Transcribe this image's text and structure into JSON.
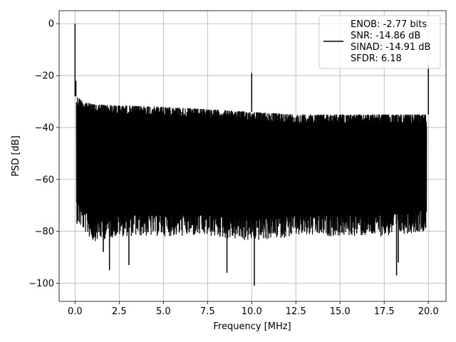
{
  "chart_data": {
    "type": "line",
    "title": "",
    "xlabel": "Frequency [MHz]",
    "ylabel": "PSD [dB]",
    "xlim": [
      -0.9,
      21.0
    ],
    "ylim": [
      -107,
      5
    ],
    "xticks": [
      0.0,
      2.5,
      5.0,
      7.5,
      10.0,
      12.5,
      15.0,
      17.5,
      20.0
    ],
    "xtick_labels": [
      "0.0",
      "2.5",
      "5.0",
      "7.5",
      "10.0",
      "12.5",
      "15.0",
      "17.5",
      "20.0"
    ],
    "yticks": [
      0,
      -20,
      -40,
      -60,
      -80,
      -100
    ],
    "ytick_labels": [
      "0",
      "−20",
      "−40",
      "−60",
      "−80",
      "−100"
    ],
    "grid": true,
    "legend_position": "top-right",
    "line_color": "#000000",
    "noise_envelope": {
      "x": [
        0.08,
        0.5,
        1.0,
        2.5,
        5.0,
        7.5,
        10.0,
        12.5,
        15.0,
        17.5,
        19.9
      ],
      "upper": [
        -28,
        -30,
        -31,
        -31.5,
        -32,
        -33,
        -34,
        -35,
        -35,
        -35,
        -35
      ],
      "lower": [
        -75,
        -78,
        -82,
        -80,
        -80,
        -80,
        -82,
        -80,
        -80,
        -80,
        -78
      ]
    },
    "notable_points": [
      {
        "x": 0.0,
        "y": 0.0
      },
      {
        "x": 0.05,
        "y": -22
      },
      {
        "x": 10.0,
        "y": -19
      },
      {
        "x": 20.0,
        "y": -16
      },
      {
        "x": 10.15,
        "y": -101
      },
      {
        "x": 18.2,
        "y": -97
      },
      {
        "x": 1.95,
        "y": -95
      },
      {
        "x": 8.6,
        "y": -96
      },
      {
        "x": 3.05,
        "y": -93
      },
      {
        "x": 1.6,
        "y": -88
      },
      {
        "x": 18.3,
        "y": -92
      }
    ],
    "series": [
      {
        "name": "",
        "legend_lines": [
          "ENOB: -2.77 bits",
          "SNR: -14.86 dB",
          "SINAD: -14.91 dB",
          "SFDR: 6.18"
        ]
      }
    ]
  }
}
